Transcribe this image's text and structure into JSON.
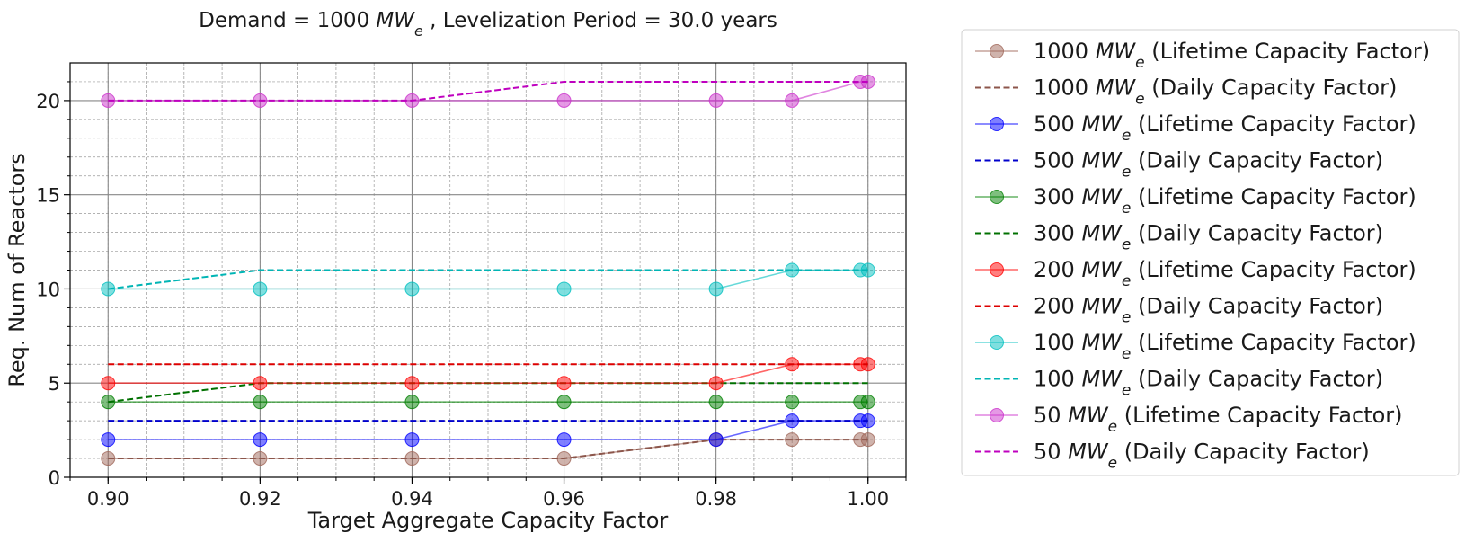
{
  "chart_data": {
    "type": "line",
    "title_prefix": "Demand  = 1000 ",
    "title_unit": "MW",
    "title_unit_sub": "e",
    "title_suffix": " , Levelization Period = 30.0 years",
    "xlabel": "Target Aggregate Capacity Factor",
    "ylabel": "Req. Num of Reactors",
    "xlim": [
      0.895,
      1.005
    ],
    "ylim": [
      0,
      22
    ],
    "x_ticks": [
      "0.90",
      "0.92",
      "0.94",
      "0.96",
      "0.98",
      "1.00"
    ],
    "y_ticks": [
      "0",
      "5",
      "10",
      "15",
      "20"
    ],
    "grid": true,
    "legend_position": "outside-right",
    "x": [
      0.9,
      0.92,
      0.94,
      0.96,
      0.98,
      0.99,
      0.999,
      1.0
    ],
    "series": [
      {
        "size": "1000",
        "unit": "MW",
        "unit_sub": "e",
        "label": " (Lifetime Capacity Factor)",
        "style": "solid-marker",
        "color": "#a0685a",
        "values": [
          1,
          1,
          1,
          1,
          2,
          2,
          2,
          2
        ]
      },
      {
        "size": "1000",
        "unit": "MW",
        "unit_sub": "e",
        "label": " (Daily Capacity Factor)",
        "style": "dashed",
        "color": "#8c564b",
        "values": [
          1,
          1,
          1,
          1,
          2,
          2,
          2,
          2
        ]
      },
      {
        "size": "500",
        "unit": "MW",
        "unit_sub": "e",
        "label": " (Lifetime Capacity Factor)",
        "style": "solid-marker",
        "color": "#0000ff",
        "values": [
          2,
          2,
          2,
          2,
          2,
          3,
          3,
          3
        ]
      },
      {
        "size": "500",
        "unit": "MW",
        "unit_sub": "e",
        "label": " (Daily Capacity Factor)",
        "style": "dashed",
        "color": "#0000cc",
        "values": [
          3,
          3,
          3,
          3,
          3,
          3,
          3,
          3
        ]
      },
      {
        "size": "300",
        "unit": "MW",
        "unit_sub": "e",
        "label": " (Lifetime Capacity Factor)",
        "style": "solid-marker",
        "color": "#008000",
        "values": [
          4,
          4,
          4,
          4,
          4,
          4,
          4,
          4
        ]
      },
      {
        "size": "300",
        "unit": "MW",
        "unit_sub": "e",
        "label": " (Daily Capacity Factor)",
        "style": "dashed",
        "color": "#007000",
        "values": [
          4,
          5,
          5,
          5,
          5,
          5,
          5,
          5
        ]
      },
      {
        "size": "200",
        "unit": "MW",
        "unit_sub": "e",
        "label": " (Lifetime Capacity Factor)",
        "style": "solid-marker",
        "color": "#ff0000",
        "values": [
          5,
          5,
          5,
          5,
          5,
          6,
          6,
          6
        ]
      },
      {
        "size": "200",
        "unit": "MW",
        "unit_sub": "e",
        "label": " (Daily Capacity Factor)",
        "style": "dashed",
        "color": "#dd0000",
        "values": [
          6,
          6,
          6,
          6,
          6,
          6,
          6,
          6
        ]
      },
      {
        "size": "100",
        "unit": "MW",
        "unit_sub": "e",
        "label": " (Lifetime Capacity Factor)",
        "style": "solid-marker",
        "color": "#00bfbf",
        "values": [
          10,
          10,
          10,
          10,
          10,
          11,
          11,
          11
        ]
      },
      {
        "size": "100",
        "unit": "MW",
        "unit_sub": "e",
        "label": " (Daily Capacity Factor)",
        "style": "dashed",
        "color": "#00b5b5",
        "values": [
          10,
          11,
          11,
          11,
          11,
          11,
          11,
          11
        ]
      },
      {
        "size": "50",
        "unit": "MW",
        "unit_sub": "e",
        "label": " (Lifetime Capacity Factor)",
        "style": "solid-marker",
        "color": "#cc33cc",
        "values": [
          20,
          20,
          20,
          20,
          20,
          20,
          21,
          21
        ]
      },
      {
        "size": "50",
        "unit": "MW",
        "unit_sub": "e",
        "label": " (Daily Capacity Factor)",
        "style": "dashed",
        "color": "#bf00bf",
        "values": [
          20,
          20,
          20,
          21,
          21,
          21,
          21,
          21
        ]
      }
    ]
  }
}
